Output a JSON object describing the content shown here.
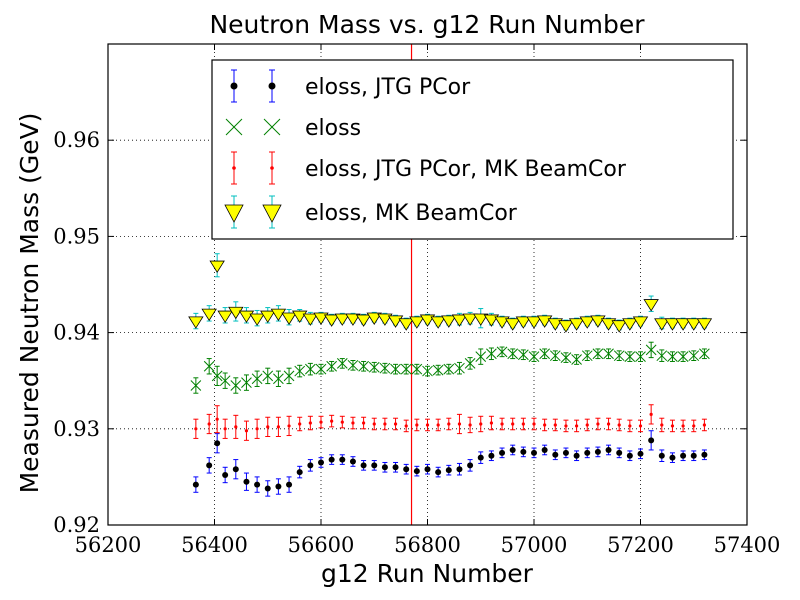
{
  "chart_data": {
    "type": "scatter",
    "title": "Neutron Mass vs. g12 Run Number",
    "xlabel": "g12 Run Number",
    "ylabel": "Measured Neutron Mass (GeV)",
    "xlim": [
      56200,
      57400
    ],
    "ylim": [
      0.92,
      0.97
    ],
    "xticks": [
      56200,
      56400,
      56600,
      56800,
      57000,
      57200,
      57400
    ],
    "xtick_labels": [
      "56200",
      "56400",
      "56600",
      "56800",
      "57000",
      "57200",
      "57400"
    ],
    "yticks": [
      0.92,
      0.93,
      0.94,
      0.95,
      0.96
    ],
    "ytick_labels": [
      "0.92",
      "0.93",
      "0.94",
      "0.95",
      "0.96"
    ],
    "grid": true,
    "legend_position": "top-center",
    "vertical_line": {
      "x": 56770,
      "color": "#ff0000"
    },
    "series": [
      {
        "name": "eloss, JTG PCor",
        "marker": "circle",
        "color": "#000000",
        "errcolor": "#0000ff",
        "x": [
          56365,
          56390,
          56405,
          56420,
          56440,
          56460,
          56480,
          56500,
          56520,
          56540,
          56560,
          56580,
          56600,
          56620,
          56640,
          56660,
          56680,
          56700,
          56720,
          56740,
          56760,
          56780,
          56800,
          56820,
          56840,
          56860,
          56880,
          56900,
          56920,
          56940,
          56960,
          56980,
          57000,
          57020,
          57040,
          57060,
          57080,
          57100,
          57120,
          57140,
          57160,
          57180,
          57200,
          57220,
          57240,
          57260,
          57280,
          57300,
          57320
        ],
        "y": [
          0.9242,
          0.9262,
          0.9285,
          0.9252,
          0.9258,
          0.9245,
          0.9242,
          0.9238,
          0.924,
          0.9242,
          0.9255,
          0.9262,
          0.9265,
          0.9268,
          0.9268,
          0.9266,
          0.9262,
          0.9262,
          0.926,
          0.926,
          0.9258,
          0.9256,
          0.9258,
          0.9255,
          0.9257,
          0.9258,
          0.9262,
          0.927,
          0.9272,
          0.9275,
          0.9278,
          0.9276,
          0.9275,
          0.9278,
          0.9273,
          0.9275,
          0.9272,
          0.9275,
          0.9276,
          0.9278,
          0.9275,
          0.9272,
          0.9274,
          0.9288,
          0.9272,
          0.927,
          0.9272,
          0.9272,
          0.9273
        ],
        "err": [
          0.0008,
          0.0008,
          0.001,
          0.0008,
          0.001,
          0.0009,
          0.0008,
          0.0008,
          0.0008,
          0.0008,
          0.0006,
          0.0006,
          0.0005,
          0.0005,
          0.0005,
          0.0005,
          0.0005,
          0.0005,
          0.0005,
          0.0005,
          0.0005,
          0.0005,
          0.0005,
          0.0005,
          0.0005,
          0.0006,
          0.0006,
          0.0006,
          0.0005,
          0.0005,
          0.0005,
          0.0005,
          0.0005,
          0.0005,
          0.0005,
          0.0005,
          0.0005,
          0.0005,
          0.0005,
          0.0005,
          0.0005,
          0.0005,
          0.0005,
          0.001,
          0.0006,
          0.0005,
          0.0005,
          0.0005,
          0.0005
        ]
      },
      {
        "name": "eloss",
        "marker": "x",
        "color": "#008000",
        "errcolor": "#008000",
        "x": [
          56365,
          56390,
          56405,
          56420,
          56440,
          56460,
          56480,
          56500,
          56520,
          56540,
          56560,
          56580,
          56600,
          56620,
          56640,
          56660,
          56680,
          56700,
          56720,
          56740,
          56760,
          56780,
          56800,
          56820,
          56840,
          56860,
          56880,
          56900,
          56920,
          56940,
          56960,
          56980,
          57000,
          57020,
          57040,
          57060,
          57080,
          57100,
          57120,
          57140,
          57160,
          57180,
          57200,
          57220,
          57240,
          57260,
          57280,
          57300,
          57320
        ],
        "y": [
          0.9345,
          0.9365,
          0.9355,
          0.935,
          0.9345,
          0.9348,
          0.9352,
          0.9355,
          0.9352,
          0.9355,
          0.936,
          0.9362,
          0.9362,
          0.9365,
          0.9368,
          0.9366,
          0.9365,
          0.9364,
          0.9363,
          0.9362,
          0.9362,
          0.9362,
          0.936,
          0.9361,
          0.9362,
          0.9363,
          0.9368,
          0.9375,
          0.9378,
          0.938,
          0.9378,
          0.9377,
          0.9375,
          0.9378,
          0.9376,
          0.9374,
          0.9372,
          0.9376,
          0.9378,
          0.9378,
          0.9376,
          0.9375,
          0.9375,
          0.9382,
          0.9376,
          0.9375,
          0.9375,
          0.9376,
          0.9378
        ],
        "err": [
          0.0008,
          0.0008,
          0.001,
          0.0008,
          0.0008,
          0.0008,
          0.0008,
          0.0008,
          0.0008,
          0.0008,
          0.0006,
          0.0006,
          0.0005,
          0.0005,
          0.0005,
          0.0005,
          0.0005,
          0.0005,
          0.0005,
          0.0005,
          0.0005,
          0.0005,
          0.0005,
          0.0005,
          0.0005,
          0.0006,
          0.0006,
          0.0008,
          0.0006,
          0.0005,
          0.0005,
          0.0005,
          0.0005,
          0.0005,
          0.0005,
          0.0005,
          0.0005,
          0.0005,
          0.0005,
          0.0005,
          0.0005,
          0.0005,
          0.0005,
          0.0008,
          0.0006,
          0.0005,
          0.0005,
          0.0005,
          0.0005
        ]
      },
      {
        "name": "eloss, JTG PCor, MK BeamCor",
        "marker": "point",
        "color": "#ff0000",
        "errcolor": "#ff0000",
        "x": [
          56365,
          56390,
          56405,
          56420,
          56440,
          56460,
          56480,
          56500,
          56520,
          56540,
          56560,
          56580,
          56600,
          56620,
          56640,
          56660,
          56680,
          56700,
          56720,
          56740,
          56760,
          56780,
          56800,
          56820,
          56840,
          56860,
          56880,
          56900,
          56920,
          56940,
          56960,
          56980,
          57000,
          57020,
          57040,
          57060,
          57080,
          57100,
          57120,
          57140,
          57160,
          57180,
          57200,
          57220,
          57240,
          57260,
          57280,
          57300,
          57320
        ],
        "y": [
          0.93,
          0.9305,
          0.931,
          0.93,
          0.9302,
          0.9298,
          0.93,
          0.9302,
          0.9302,
          0.9303,
          0.9305,
          0.9306,
          0.9307,
          0.9308,
          0.9307,
          0.9306,
          0.9306,
          0.9305,
          0.9305,
          0.9305,
          0.9303,
          0.9304,
          0.9304,
          0.9304,
          0.9305,
          0.9305,
          0.9304,
          0.9305,
          0.9306,
          0.9305,
          0.9305,
          0.9305,
          0.9305,
          0.9304,
          0.9304,
          0.9303,
          0.9303,
          0.9304,
          0.9305,
          0.9305,
          0.9304,
          0.9303,
          0.9303,
          0.9315,
          0.9304,
          0.9303,
          0.9303,
          0.9303,
          0.9304
        ],
        "err": [
          0.001,
          0.001,
          0.0014,
          0.001,
          0.0012,
          0.001,
          0.001,
          0.001,
          0.001,
          0.001,
          0.0007,
          0.0007,
          0.0006,
          0.0006,
          0.0006,
          0.0006,
          0.0006,
          0.0006,
          0.0006,
          0.0006,
          0.0006,
          0.0006,
          0.0006,
          0.0006,
          0.0006,
          0.001,
          0.0008,
          0.0008,
          0.0007,
          0.0006,
          0.0006,
          0.0006,
          0.0006,
          0.0006,
          0.0006,
          0.0006,
          0.0006,
          0.0006,
          0.0006,
          0.0006,
          0.0006,
          0.0006,
          0.0006,
          0.001,
          0.0007,
          0.0006,
          0.0006,
          0.0006,
          0.0006
        ]
      },
      {
        "name": "eloss, MK BeamCor",
        "marker": "triangle-down",
        "color": "#ffff00",
        "errcolor": "#00bfbf",
        "x": [
          56365,
          56390,
          56405,
          56420,
          56440,
          56460,
          56480,
          56500,
          56520,
          56540,
          56560,
          56580,
          56600,
          56620,
          56640,
          56660,
          56680,
          56700,
          56720,
          56740,
          56760,
          56780,
          56800,
          56820,
          56840,
          56860,
          56880,
          56900,
          56920,
          56940,
          56960,
          56980,
          57000,
          57020,
          57040,
          57060,
          57080,
          57100,
          57120,
          57140,
          57160,
          57180,
          57200,
          57220,
          57240,
          57260,
          57280,
          57300,
          57320
        ],
        "y": [
          0.9412,
          0.942,
          0.947,
          0.9418,
          0.9422,
          0.9418,
          0.9415,
          0.9418,
          0.942,
          0.9416,
          0.9418,
          0.9415,
          0.9416,
          0.9414,
          0.9415,
          0.9415,
          0.9414,
          0.9416,
          0.9415,
          0.9413,
          0.941,
          0.9412,
          0.9414,
          0.9412,
          0.9413,
          0.9414,
          0.9415,
          0.9415,
          0.9414,
          0.9412,
          0.941,
          0.9412,
          0.9412,
          0.9413,
          0.941,
          0.9408,
          0.941,
          0.9412,
          0.9413,
          0.941,
          0.9408,
          0.941,
          0.9412,
          0.943,
          0.941,
          0.941,
          0.941,
          0.941,
          0.941
        ],
        "err": [
          0.0008,
          0.0008,
          0.0012,
          0.0008,
          0.001,
          0.0008,
          0.0008,
          0.0008,
          0.0008,
          0.0008,
          0.0006,
          0.0006,
          0.0005,
          0.0005,
          0.0005,
          0.0005,
          0.0005,
          0.0005,
          0.0005,
          0.0005,
          0.0005,
          0.0005,
          0.0005,
          0.0005,
          0.0005,
          0.0006,
          0.0006,
          0.001,
          0.0006,
          0.0005,
          0.0005,
          0.0005,
          0.0005,
          0.0005,
          0.0005,
          0.0005,
          0.0005,
          0.0005,
          0.0005,
          0.0005,
          0.0005,
          0.0005,
          0.0005,
          0.0008,
          0.0006,
          0.0005,
          0.0005,
          0.0005,
          0.0005
        ]
      }
    ]
  }
}
